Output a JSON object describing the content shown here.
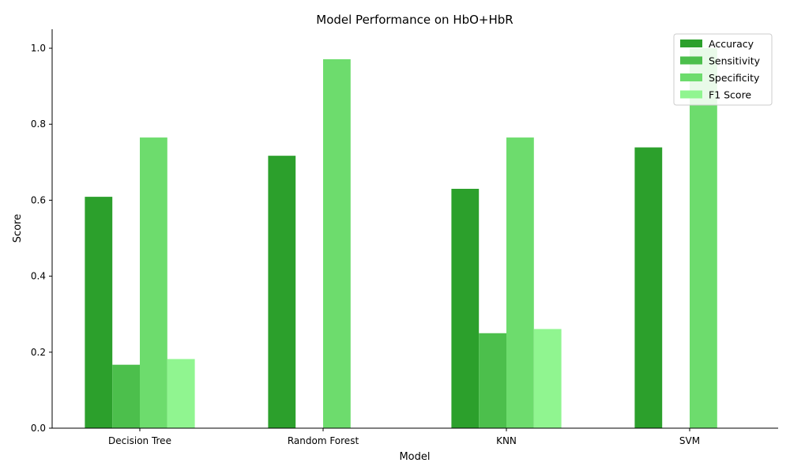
{
  "chart_data": {
    "type": "bar",
    "title": "Model Performance on HbO+HbR",
    "xlabel": "Model",
    "ylabel": "Score",
    "categories": [
      "Decision Tree",
      "Random Forest",
      "KNN",
      "SVM"
    ],
    "ylim": [
      0,
      1.05
    ],
    "yticks": [
      "0.0",
      "0.2",
      "0.4",
      "0.6",
      "0.8",
      "1.0"
    ],
    "legend_position": "top-right",
    "grid": false,
    "series": [
      {
        "name": "Accuracy",
        "color": "#2ca02c",
        "values": [
          0.609,
          0.717,
          0.63,
          0.739
        ]
      },
      {
        "name": "Sensitivity",
        "color": "#4cbf4c",
        "values": [
          0.167,
          0.0,
          0.25,
          0.0
        ]
      },
      {
        "name": "Specificity",
        "color": "#6ddc6d",
        "values": [
          0.765,
          0.971,
          0.765,
          1.0
        ]
      },
      {
        "name": "F1 Score",
        "color": "#90f590",
        "values": [
          0.182,
          0.0,
          0.261,
          0.0
        ]
      }
    ]
  }
}
